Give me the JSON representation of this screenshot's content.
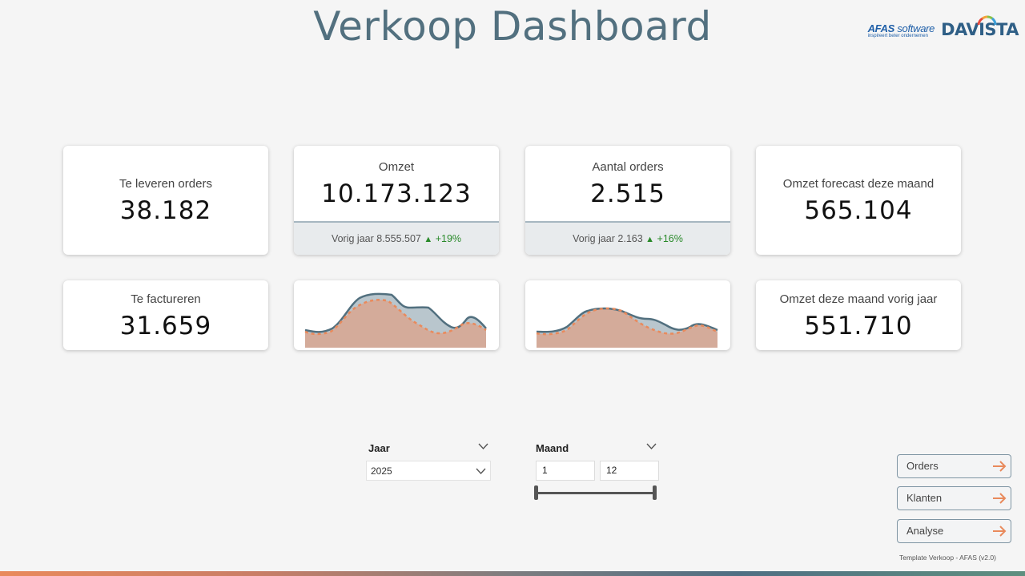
{
  "header": {
    "title": "Verkoop Dashboard",
    "afas_logo_text": "AFAS",
    "afas_logo_software": "software",
    "afas_tagline": "inspireert beter ondernemen",
    "davista_logo": "DAVISTA"
  },
  "kpis": {
    "te_leveren": {
      "label": "Te leveren orders",
      "value": "38.182"
    },
    "omzet": {
      "label": "Omzet",
      "value": "10.173.123",
      "prev_label": "Vorig jaar",
      "prev_value": "8.555.507",
      "change": "+19%"
    },
    "aantal_orders": {
      "label": "Aantal orders",
      "value": "2.515",
      "prev_label": "Vorig jaar",
      "prev_value": "2.163",
      "change": "+16%"
    },
    "forecast": {
      "label": "Omzet forecast deze maand",
      "value": "565.104"
    },
    "te_factureren": {
      "label": "Te factureren",
      "value": "31.659"
    },
    "omzet_vorig_jaar": {
      "label": "Omzet deze maand vorig jaar",
      "value": "551.710"
    }
  },
  "filters": {
    "jaar": {
      "label": "Jaar",
      "selected": "2025"
    },
    "maand": {
      "label": "Maand",
      "from": "1",
      "to": "12",
      "range_min_fraction": 0.0,
      "range_max_fraction": 1.0
    }
  },
  "nav": {
    "orders": "Orders",
    "klanten": "Klanten",
    "analyse": "Analyse"
  },
  "footer": {
    "note": "Template Verkoop - AFAS (v2.0)"
  },
  "colors": {
    "title": "#52707f",
    "current_series": "#52707f",
    "previous_series": "#e98a5c",
    "up": "#2a8a2a"
  },
  "icons": {
    "trend_up": "triangle-up-icon",
    "nav_arrow": "arrow-right-icon",
    "dropdown": "chevron-down-icon"
  }
}
